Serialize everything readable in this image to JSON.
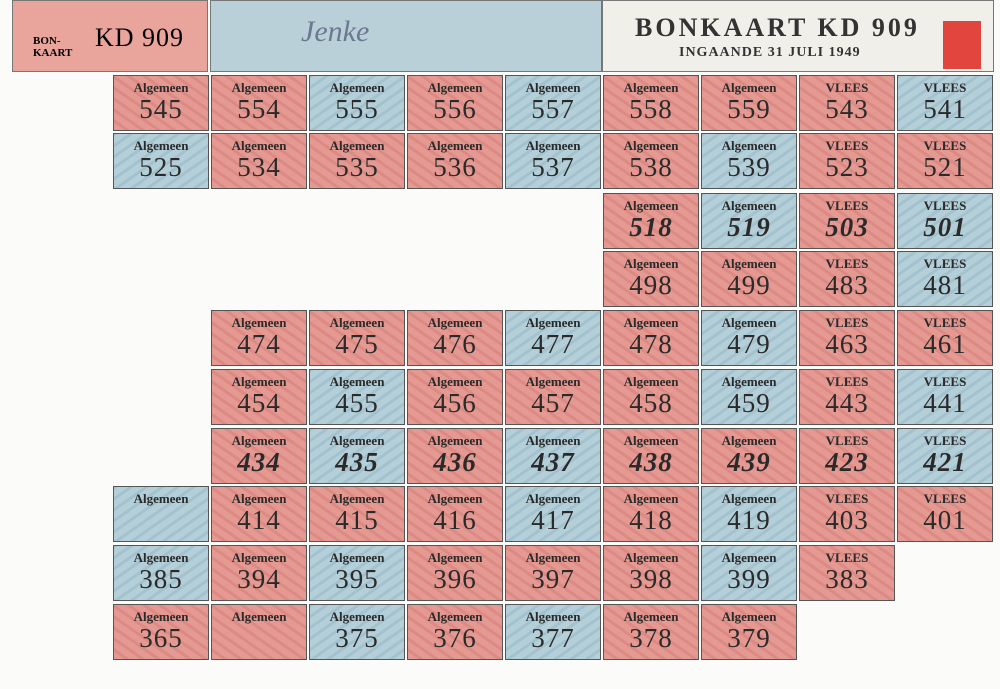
{
  "header": {
    "badge": "BON-KAART",
    "code": "KD 909",
    "handwriting": "Jenke",
    "title": "BONKAART KD 909",
    "subtitle": "INGAANDE 31 JULI 1949"
  },
  "coupons": [
    [
      {
        "label": "Algemeen",
        "number": "545"
      },
      {
        "label": "Algemeen",
        "number": "554"
      },
      {
        "label": "Algemeen",
        "number": "555"
      },
      {
        "label": "Algemeen",
        "number": "556"
      },
      {
        "label": "Algemeen",
        "number": "557"
      },
      {
        "label": "Algemeen",
        "number": "558"
      },
      {
        "label": "Algemeen",
        "number": "559"
      },
      {
        "label": "VLEES",
        "number": "543"
      },
      {
        "label": "VLEES",
        "number": "541"
      }
    ],
    [
      {
        "label": "Algemeen",
        "number": "525"
      },
      {
        "label": "Algemeen",
        "number": "534"
      },
      {
        "label": "Algemeen",
        "number": "535"
      },
      {
        "label": "Algemeen",
        "number": "536"
      },
      {
        "label": "Algemeen",
        "number": "537"
      },
      {
        "label": "Algemeen",
        "number": "538"
      },
      {
        "label": "Algemeen",
        "number": "539"
      },
      {
        "label": "VLEES",
        "number": "523"
      },
      {
        "label": "VLEES",
        "number": "521"
      }
    ],
    [
      {
        "label": "Algemeen",
        "number": "518"
      },
      {
        "label": "Algemeen",
        "number": "519"
      },
      {
        "label": "VLEES",
        "number": "503"
      },
      {
        "label": "VLEES",
        "number": "501"
      }
    ],
    [
      {
        "label": "Algemeen",
        "number": "498"
      },
      {
        "label": "Algemeen",
        "number": "499"
      },
      {
        "label": "VLEES",
        "number": "483"
      },
      {
        "label": "VLEES",
        "number": "481"
      }
    ],
    [
      {
        "label": "Algemeen",
        "number": "474"
      },
      {
        "label": "Algemeen",
        "number": "475"
      },
      {
        "label": "Algemeen",
        "number": "476"
      },
      {
        "label": "Algemeen",
        "number": "477"
      },
      {
        "label": "Algemeen",
        "number": "478"
      },
      {
        "label": "Algemeen",
        "number": "479"
      },
      {
        "label": "VLEES",
        "number": "463"
      },
      {
        "label": "VLEES",
        "number": "461"
      }
    ],
    [
      {
        "label": "Algemeen",
        "number": "454"
      },
      {
        "label": "Algemeen",
        "number": "455"
      },
      {
        "label": "Algemeen",
        "number": "456"
      },
      {
        "label": "Algemeen",
        "number": "457"
      },
      {
        "label": "Algemeen",
        "number": "458"
      },
      {
        "label": "Algemeen",
        "number": "459"
      },
      {
        "label": "VLEES",
        "number": "443"
      },
      {
        "label": "VLEES",
        "number": "441"
      }
    ],
    [
      {
        "label": "Algemeen",
        "number": "434"
      },
      {
        "label": "Algemeen",
        "number": "435"
      },
      {
        "label": "Algemeen",
        "number": "436"
      },
      {
        "label": "Algemeen",
        "number": "437"
      },
      {
        "label": "Algemeen",
        "number": "438"
      },
      {
        "label": "Algemeen",
        "number": "439"
      },
      {
        "label": "VLEES",
        "number": "423"
      },
      {
        "label": "VLEES",
        "number": "421"
      }
    ],
    [
      {
        "label": "Algemeen"
      },
      {
        "label": "Algemeen",
        "number": "414"
      },
      {
        "label": "Algemeen",
        "number": "415"
      },
      {
        "label": "Algemeen",
        "number": "416"
      },
      {
        "label": "Algemeen",
        "number": "417"
      },
      {
        "label": "Algemeen",
        "number": "418"
      },
      {
        "label": "Algemeen",
        "number": "419"
      },
      {
        "label": "VLEES",
        "number": "403"
      },
      {
        "label": "VLEES",
        "number": "401"
      }
    ],
    [
      {
        "label": "Algemeen",
        "number": "385"
      },
      {
        "label": "Algemeen",
        "number": "394"
      },
      {
        "label": "Algemeen",
        "number": "395"
      },
      {
        "label": "Algemeen",
        "number": "396"
      },
      {
        "label": "Algemeen",
        "number": "397"
      },
      {
        "label": "Algemeen",
        "number": "398"
      },
      {
        "label": "Algemeen",
        "number": "399"
      },
      {
        "label": "VLEES",
        "number": "383"
      }
    ],
    [
      {
        "label": "Algemeen",
        "number": "365"
      },
      {
        "label": "Algemeen"
      },
      {
        "label": "Algemeen",
        "number": "375"
      },
      {
        "label": "Algemeen",
        "number": "376"
      },
      {
        "label": "Algemeen",
        "number": "377"
      },
      {
        "label": "Algemeen",
        "number": "378"
      },
      {
        "label": "Algemeen",
        "number": "379"
      }
    ]
  ]
}
